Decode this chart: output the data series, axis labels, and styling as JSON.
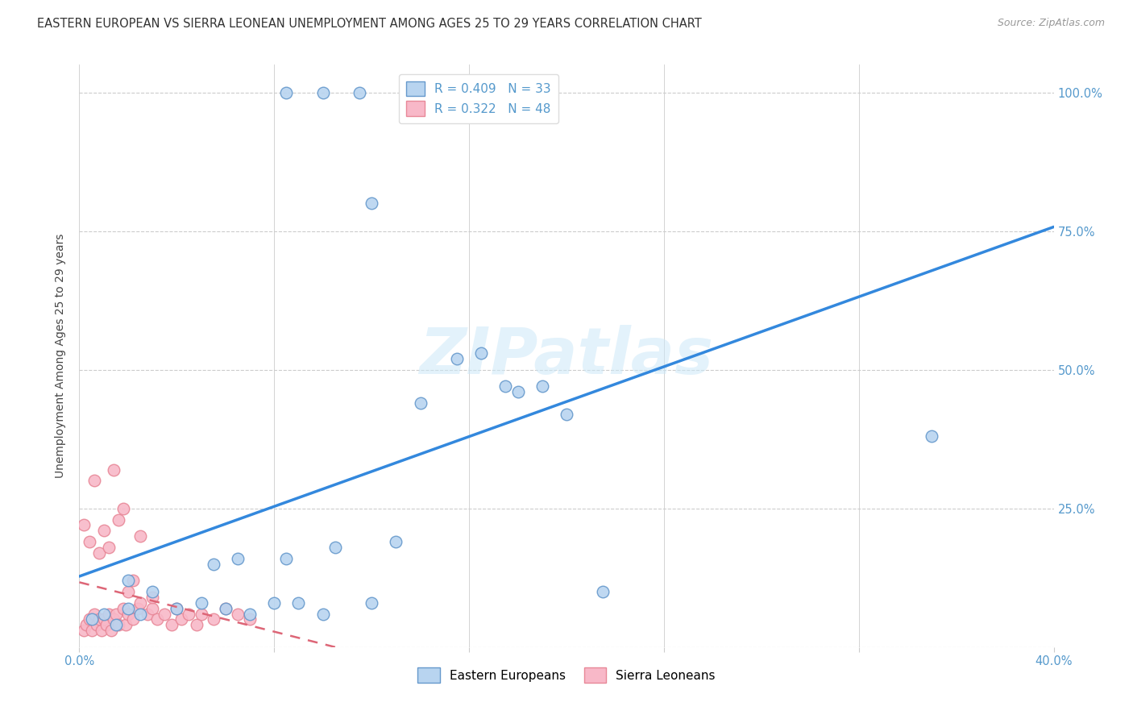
{
  "title": "EASTERN EUROPEAN VS SIERRA LEONEAN UNEMPLOYMENT AMONG AGES 25 TO 29 YEARS CORRELATION CHART",
  "source": "Source: ZipAtlas.com",
  "ylabel": "Unemployment Among Ages 25 to 29 years",
  "xlim": [
    0.0,
    0.4
  ],
  "ylim": [
    0.0,
    1.05
  ],
  "xticks": [
    0.0,
    0.08,
    0.16,
    0.24,
    0.32,
    0.4
  ],
  "yticks": [
    0.0,
    0.25,
    0.5,
    0.75,
    1.0
  ],
  "background_color": "#ffffff",
  "watermark": "ZIPatlas",
  "blue_R": 0.409,
  "blue_N": 33,
  "pink_R": 0.322,
  "pink_N": 48,
  "blue_face": "#b8d4f0",
  "pink_face": "#f8b8c8",
  "blue_edge": "#6699cc",
  "pink_edge": "#e88898",
  "blue_line": "#3388dd",
  "pink_line": "#dd6677",
  "axis_color": "#5599cc",
  "grid_color": "#cccccc",
  "blue_x": [
    0.005,
    0.01,
    0.015,
    0.02,
    0.02,
    0.025,
    0.03,
    0.04,
    0.05,
    0.055,
    0.06,
    0.065,
    0.07,
    0.08,
    0.085,
    0.09,
    0.1,
    0.105,
    0.12,
    0.13,
    0.14,
    0.155,
    0.165,
    0.175,
    0.18,
    0.19,
    0.2,
    0.215,
    0.085,
    0.1,
    0.115,
    0.35,
    0.12
  ],
  "blue_y": [
    0.05,
    0.06,
    0.04,
    0.07,
    0.12,
    0.06,
    0.1,
    0.07,
    0.08,
    0.15,
    0.07,
    0.16,
    0.06,
    0.08,
    0.16,
    0.08,
    0.06,
    0.18,
    0.08,
    0.19,
    0.44,
    0.52,
    0.53,
    0.47,
    0.46,
    0.47,
    0.42,
    0.1,
    1.0,
    1.0,
    1.0,
    0.38,
    0.8
  ],
  "pink_x": [
    0.002,
    0.003,
    0.004,
    0.005,
    0.006,
    0.007,
    0.008,
    0.009,
    0.01,
    0.011,
    0.012,
    0.013,
    0.014,
    0.015,
    0.016,
    0.018,
    0.019,
    0.02,
    0.022,
    0.024,
    0.025,
    0.028,
    0.03,
    0.032,
    0.035,
    0.038,
    0.04,
    0.042,
    0.045,
    0.048,
    0.05,
    0.055,
    0.06,
    0.065,
    0.07,
    0.002,
    0.004,
    0.006,
    0.008,
    0.01,
    0.012,
    0.014,
    0.016,
    0.018,
    0.02,
    0.022,
    0.025,
    0.03
  ],
  "pink_y": [
    0.03,
    0.04,
    0.05,
    0.03,
    0.06,
    0.04,
    0.05,
    0.03,
    0.05,
    0.04,
    0.06,
    0.03,
    0.05,
    0.06,
    0.04,
    0.07,
    0.04,
    0.06,
    0.05,
    0.07,
    0.2,
    0.06,
    0.07,
    0.05,
    0.06,
    0.04,
    0.07,
    0.05,
    0.06,
    0.04,
    0.06,
    0.05,
    0.07,
    0.06,
    0.05,
    0.22,
    0.19,
    0.3,
    0.17,
    0.21,
    0.18,
    0.32,
    0.23,
    0.25,
    0.1,
    0.12,
    0.08,
    0.09
  ],
  "marker_size": 110,
  "title_fontsize": 10.5,
  "label_fontsize": 10,
  "tick_fontsize": 10.5,
  "legend_fontsize": 11
}
